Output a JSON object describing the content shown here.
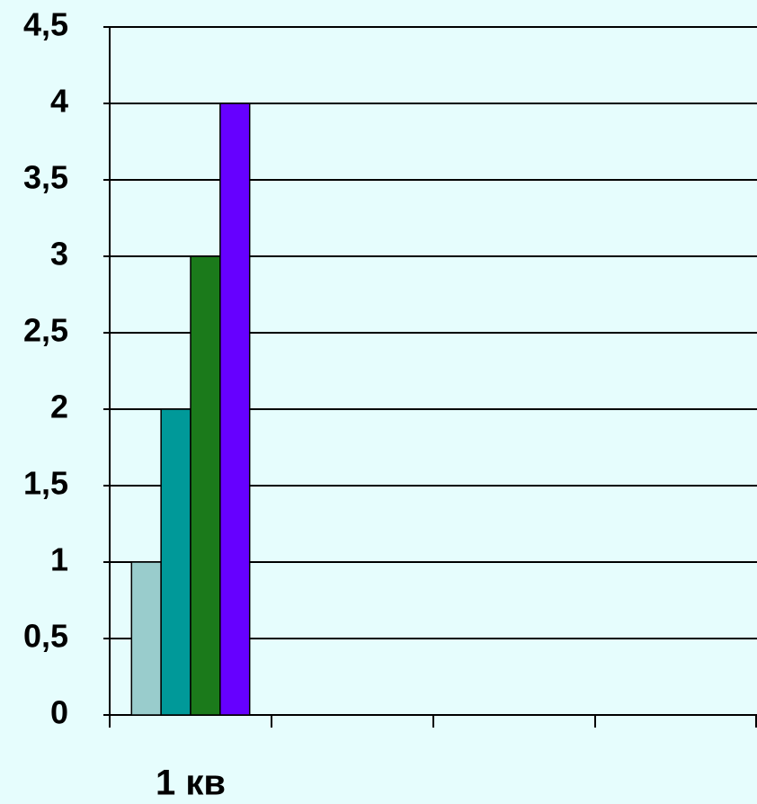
{
  "chart_data": {
    "type": "bar",
    "categories": [
      "1 кв",
      null,
      null,
      null
    ],
    "series": [
      {
        "color": "#99cccc",
        "values": [
          1,
          null,
          null,
          null
        ]
      },
      {
        "color": "#009999",
        "values": [
          2,
          null,
          null,
          null
        ]
      },
      {
        "color": "#1b7a1b",
        "values": [
          3,
          null,
          null,
          null
        ]
      },
      {
        "color": "#6600ff",
        "values": [
          4,
          null,
          null,
          null
        ]
      }
    ],
    "ylim": [
      0,
      4.5
    ],
    "yticks": [
      0,
      {
        "value": 0.5,
        "label": "0,5"
      },
      1,
      {
        "value": 1.5,
        "label": "1,5"
      },
      2,
      {
        "value": 2.5,
        "label": "2,5"
      },
      3,
      {
        "value": 3.5,
        "label": "3,5"
      },
      4,
      {
        "value": 4.5,
        "label": "4,5"
      }
    ],
    "grid": true
  }
}
